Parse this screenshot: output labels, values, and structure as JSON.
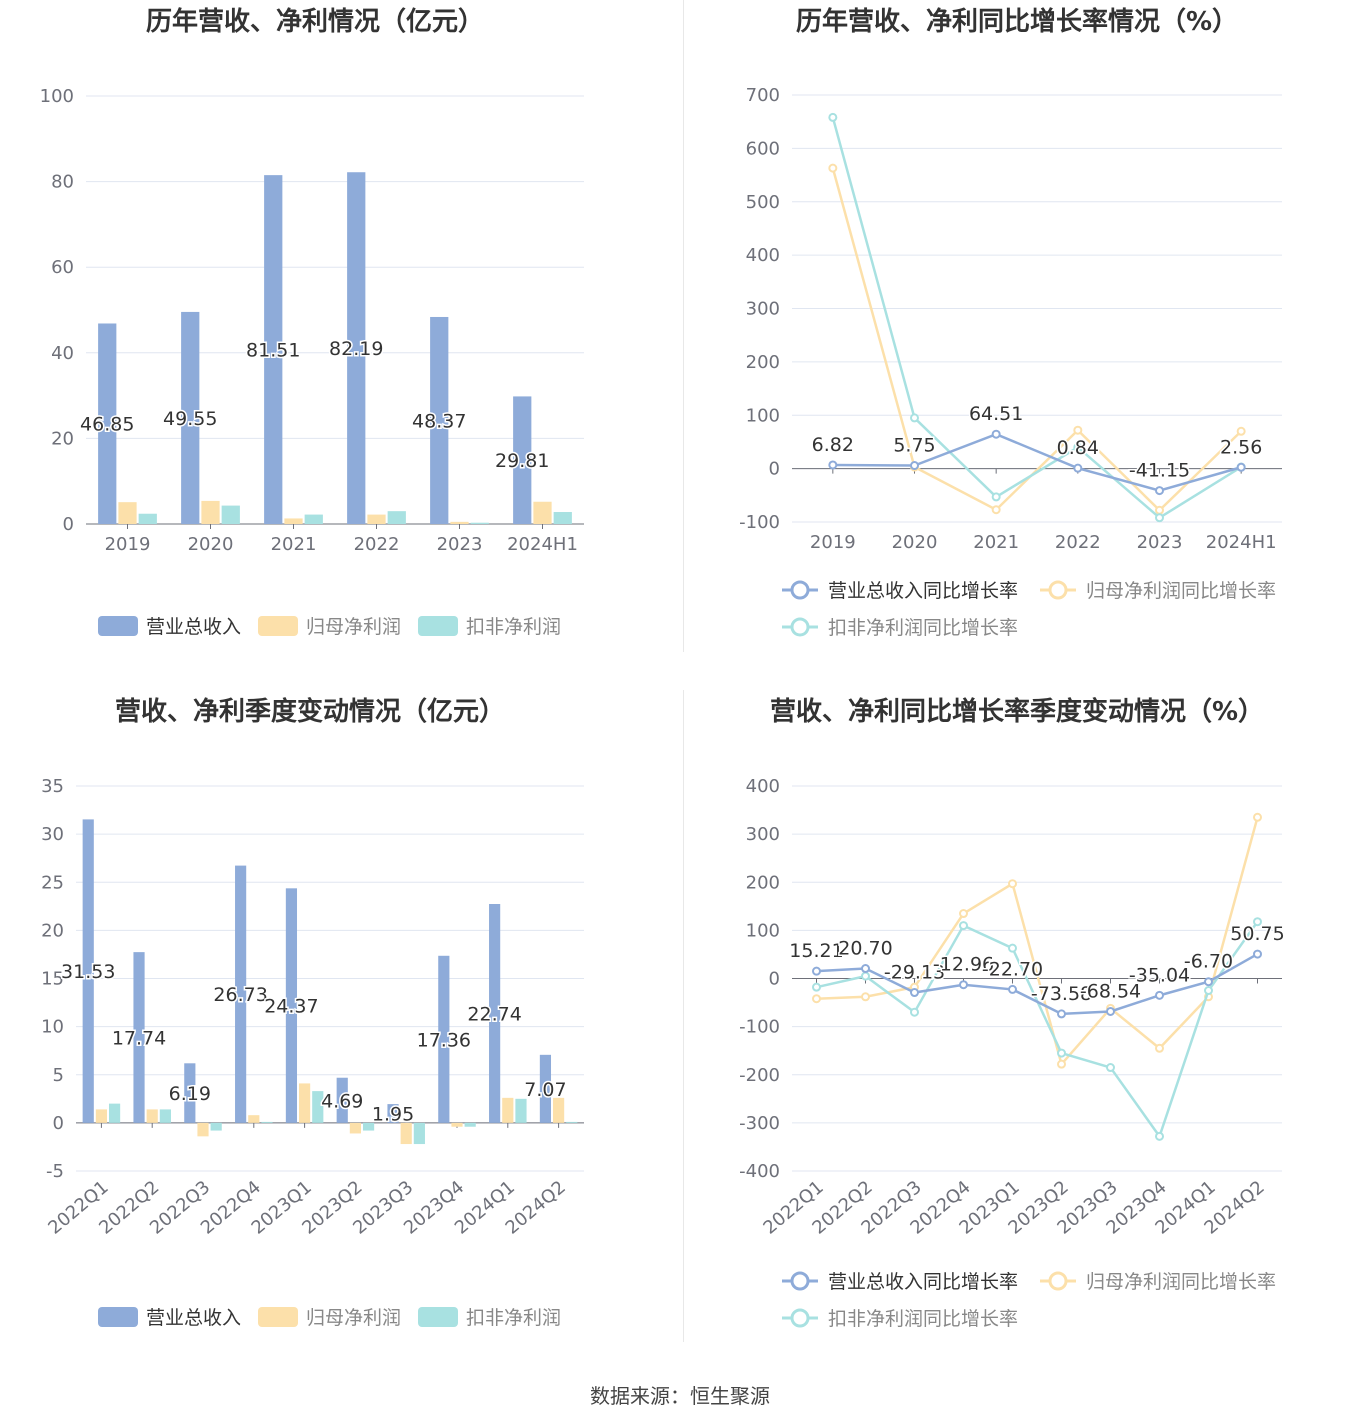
{
  "colors": {
    "revenue": "#8eabd9",
    "net_profit": "#fce0aa",
    "deducted_profit": "#a8e1e1",
    "grid": "#e0e6f1",
    "axis": "#6e7079",
    "title": "#333333"
  },
  "footer": "数据来源：恒生聚源",
  "chart_data": [
    {
      "type": "bar",
      "title": "历年营收、净利情况（亿元）",
      "categories": [
        "2019",
        "2020",
        "2021",
        "2022",
        "2023",
        "2024H1"
      ],
      "ylim": [
        0,
        100
      ],
      "yticks": [
        0,
        20,
        40,
        60,
        80,
        100
      ],
      "grid": true,
      "legend_position": "bottom",
      "series": [
        {
          "name": "营业总收入",
          "values": [
            46.85,
            49.55,
            81.51,
            82.19,
            48.37,
            29.81
          ],
          "labels": [
            "46.85",
            "49.55",
            "81.51",
            "82.19",
            "48.37",
            "29.81"
          ]
        },
        {
          "name": "归母净利润",
          "values": [
            5.1,
            5.4,
            1.3,
            2.2,
            0.5,
            5.2
          ]
        },
        {
          "name": "扣非净利润",
          "values": [
            2.4,
            4.3,
            2.2,
            3.0,
            0.3,
            2.8
          ]
        }
      ]
    },
    {
      "type": "line",
      "title": "历年营收、净利同比增长率情况（%）",
      "categories": [
        "2019",
        "2020",
        "2021",
        "2022",
        "2023",
        "2024H1"
      ],
      "ylim": [
        -100,
        700
      ],
      "yticks": [
        -100,
        0,
        100,
        200,
        300,
        400,
        500,
        600,
        700
      ],
      "grid": true,
      "legend_position": "bottom",
      "series": [
        {
          "name": "营业总收入同比增长率",
          "values": [
            6.82,
            5.75,
            64.51,
            0.84,
            -41.15,
            2.56
          ],
          "labels": [
            "6.82",
            "5.75",
            "64.51",
            "0.84",
            "-41.15",
            "2.56"
          ]
        },
        {
          "name": "归母净利润同比增长率",
          "values": [
            563,
            3,
            -77,
            72,
            -78,
            70
          ]
        },
        {
          "name": "扣非净利润同比增长率",
          "values": [
            658,
            95,
            -53,
            40,
            -92,
            3
          ]
        }
      ]
    },
    {
      "type": "bar",
      "title": "营收、净利季度变动情况（亿元）",
      "categories": [
        "2022Q1",
        "2022Q2",
        "2022Q3",
        "2022Q4",
        "2023Q1",
        "2023Q2",
        "2023Q3",
        "2023Q4",
        "2024Q1",
        "2024Q2"
      ],
      "ylim": [
        -5,
        35
      ],
      "yticks": [
        -5,
        0,
        5,
        10,
        15,
        20,
        25,
        30,
        35
      ],
      "grid": true,
      "legend_position": "bottom",
      "series": [
        {
          "name": "营业总收入",
          "values": [
            31.53,
            17.74,
            6.19,
            26.73,
            24.37,
            4.69,
            1.95,
            17.36,
            22.74,
            7.07
          ],
          "labels": [
            "31.53",
            "17.74",
            "6.19",
            "26.73",
            "24.37",
            "4.69",
            "1.95",
            "17.36",
            "22.74",
            "7.07"
          ]
        },
        {
          "name": "归母净利润",
          "values": [
            1.4,
            1.4,
            -1.4,
            0.8,
            4.1,
            -1.1,
            -2.2,
            -0.4,
            2.6,
            2.6
          ]
        },
        {
          "name": "扣非净利润",
          "values": [
            2.0,
            1.4,
            -0.8,
            0.1,
            3.3,
            -0.8,
            -2.2,
            -0.4,
            2.5,
            0.1
          ]
        }
      ]
    },
    {
      "type": "line",
      "title": "营收、净利同比增长率季度变动情况（%）",
      "categories": [
        "2022Q1",
        "2022Q2",
        "2022Q3",
        "2022Q4",
        "2023Q1",
        "2023Q2",
        "2023Q3",
        "2023Q4",
        "2024Q1",
        "2024Q2"
      ],
      "ylim": [
        -400,
        400
      ],
      "yticks": [
        -400,
        -300,
        -200,
        -100,
        0,
        100,
        200,
        300,
        400
      ],
      "grid": true,
      "legend_position": "bottom",
      "series": [
        {
          "name": "营业总收入同比增长率",
          "values": [
            15.21,
            20.7,
            -29.13,
            -12.96,
            -22.7,
            -73.58,
            -68.54,
            -35.04,
            -6.7,
            50.75
          ],
          "labels": [
            "15.21",
            "20.70",
            "-29.13",
            "-12.96",
            "-22.70",
            "-73.58",
            "-68.54",
            "-35.04",
            "-6.70",
            "50.75"
          ]
        },
        {
          "name": "归母净利润同比增长率",
          "values": [
            -42,
            -38,
            -18,
            135,
            197,
            -178,
            -62,
            -145,
            -38,
            335
          ]
        },
        {
          "name": "扣非净利润同比增长率",
          "values": [
            -18,
            5,
            -70,
            110,
            63,
            -155,
            -185,
            -328,
            -25,
            118
          ]
        }
      ]
    }
  ]
}
